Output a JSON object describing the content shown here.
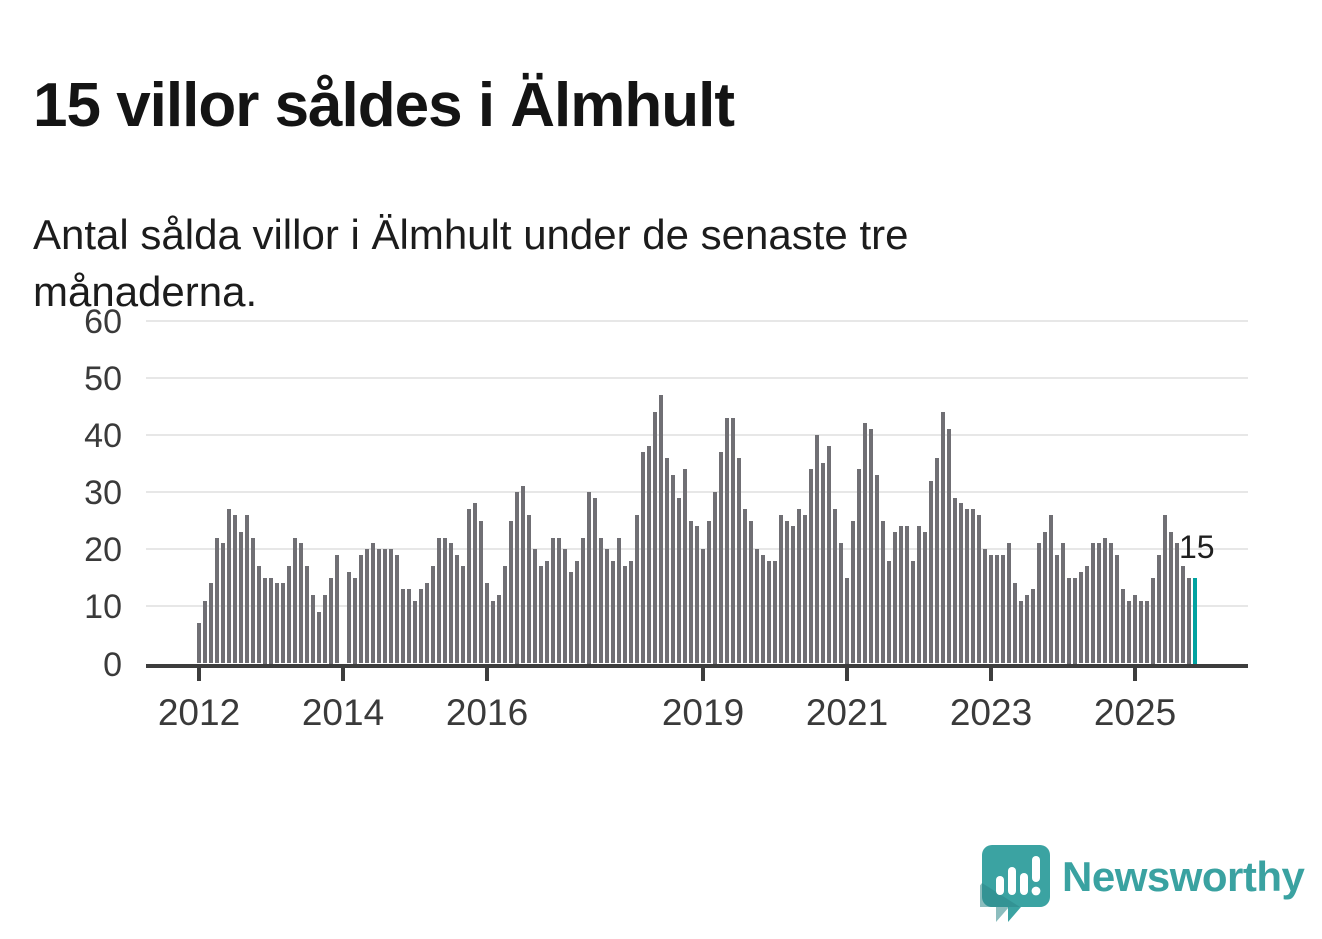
{
  "header": {
    "title": "15 villor såldes i Älmhult",
    "subtitle": "Antal sålda villor i Älmhult under de senaste tre månaderna."
  },
  "chart_data": {
    "type": "bar",
    "title": "15 villor såldes i Älmhult",
    "subtitle": "Antal sålda villor i Älmhult under de senaste tre månaderna.",
    "start_month": "2012-01",
    "frequency": "monthly",
    "values": [
      7,
      11,
      14,
      22,
      21,
      27,
      26,
      23,
      26,
      22,
      17,
      15,
      15,
      14,
      14,
      17,
      22,
      21,
      17,
      12,
      9,
      12,
      15,
      19,
      0,
      16,
      15,
      19,
      20,
      21,
      20,
      20,
      20,
      19,
      13,
      13,
      11,
      13,
      14,
      17,
      22,
      22,
      21,
      19,
      17,
      27,
      28,
      25,
      14,
      11,
      12,
      17,
      25,
      30,
      31,
      26,
      20,
      17,
      18,
      22,
      22,
      20,
      16,
      18,
      22,
      30,
      29,
      22,
      20,
      18,
      22,
      17,
      18,
      26,
      37,
      38,
      44,
      47,
      36,
      33,
      29,
      34,
      25,
      24,
      20,
      25,
      30,
      37,
      43,
      43,
      36,
      27,
      25,
      20,
      19,
      18,
      18,
      26,
      25,
      24,
      27,
      26,
      34,
      40,
      35,
      38,
      27,
      21,
      15,
      25,
      34,
      42,
      41,
      33,
      25,
      18,
      23,
      24,
      24,
      18,
      24,
      23,
      32,
      36,
      44,
      41,
      29,
      28,
      27,
      27,
      26,
      20,
      19,
      19,
      19,
      21,
      14,
      11,
      12,
      13,
      21,
      23,
      26,
      19,
      21,
      15,
      15,
      16,
      17,
      21,
      21,
      22,
      21,
      19,
      13,
      11,
      12,
      11,
      11,
      15,
      19,
      26,
      23,
      21,
      17,
      15,
      15
    ],
    "ylim": [
      0,
      60
    ],
    "y_ticks": [
      0,
      10,
      20,
      30,
      40,
      50,
      60
    ],
    "x_ticks": [
      {
        "label": "2012",
        "month_index": 0
      },
      {
        "label": "2014",
        "month_index": 24
      },
      {
        "label": "2016",
        "month_index": 48
      },
      {
        "label": "2019",
        "month_index": 84
      },
      {
        "label": "2021",
        "month_index": 108
      },
      {
        "label": "2023",
        "month_index": 132
      },
      {
        "label": "2025",
        "month_index": 156
      }
    ],
    "grid": true,
    "legend": false,
    "bar_color": "#706f74",
    "highlight_color": "#00a2a0",
    "highlight": {
      "index": 166,
      "value": 15,
      "label": "15"
    }
  },
  "logo": {
    "text": "Newsworthy",
    "icon": "newsworthy-speech-bubble-chart-icon",
    "color": "#3aa2a1",
    "icon_shadow_color": "#2d8688"
  }
}
